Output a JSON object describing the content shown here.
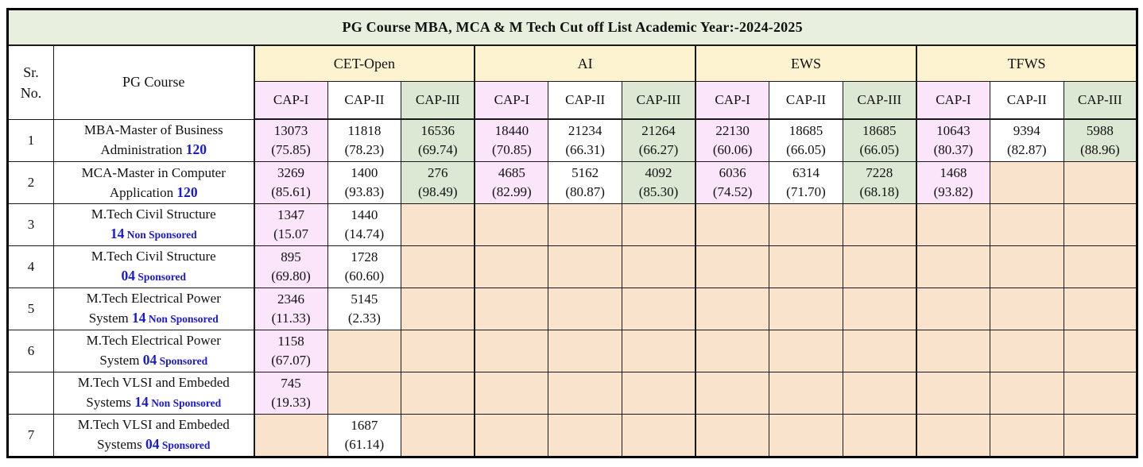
{
  "title": "PG Course MBA, MCA & M Tech Cut off List Academic Year:-2024-2025",
  "header": {
    "sr_no": "Sr.\nNo.",
    "pg_course": "PG Course",
    "groups": [
      "CET-Open",
      "AI",
      "EWS",
      "TFWS"
    ],
    "cap_labels": [
      "CAP-I",
      "CAP-II",
      "CAP-III"
    ]
  },
  "colors": {
    "title_bg": "#e9efdf",
    "group_header_bg": "#fdf3d0",
    "cap1_bg": "#fbe5fb",
    "cap2_bg": "#ffffff",
    "cap3_bg": "#dce8d4",
    "empty_cell_bg": "#fae3cd",
    "accent_blue": "#1a1ad1",
    "border": "#1a1a1a"
  },
  "rows": [
    {
      "sr": "1",
      "course": {
        "line1": "MBA-Master of Business",
        "line2_pre": "Administration",
        "num": "120",
        "tag": ""
      },
      "cells": [
        [
          "13073",
          "(75.85)"
        ],
        [
          "11818",
          "(78.23)"
        ],
        [
          "16536",
          "(69.74)"
        ],
        [
          "18440",
          "(70.85)"
        ],
        [
          "21234",
          "(66.31)"
        ],
        [
          "21264",
          "(66.27)"
        ],
        [
          "22130",
          "(60.06)"
        ],
        [
          "18685",
          "(66.05)"
        ],
        [
          "18685",
          "(66.05)"
        ],
        [
          "10643",
          "(80.37)"
        ],
        [
          "9394",
          "(82.87)"
        ],
        [
          "5988",
          "(88.96)"
        ]
      ]
    },
    {
      "sr": "2",
      "course": {
        "line1": "MCA-Master in Computer",
        "line2_pre": "Application",
        "num": "120",
        "tag": ""
      },
      "cells": [
        [
          "3269",
          "(85.61)"
        ],
        [
          "1400",
          "(93.83)"
        ],
        [
          "276",
          "(98.49)"
        ],
        [
          "4685",
          "(82.99)"
        ],
        [
          "5162",
          "(80.87)"
        ],
        [
          "4092",
          "(85.30)"
        ],
        [
          "6036",
          "(74.52)"
        ],
        [
          "6314",
          "(71.70)"
        ],
        [
          "7228",
          "(68.18)"
        ],
        [
          "1468",
          "(93.82)"
        ],
        null,
        null
      ]
    },
    {
      "sr": "3",
      "course": {
        "line1": "M.Tech Civil Structure",
        "line2_pre": "",
        "num": "14",
        "tag": "Non Sponsored"
      },
      "cells": [
        [
          "1347",
          "(15.07"
        ],
        [
          "1440",
          "(14.74)"
        ],
        null,
        null,
        null,
        null,
        null,
        null,
        null,
        null,
        null,
        null
      ]
    },
    {
      "sr": "4",
      "course": {
        "line1": "M.Tech Civil Structure",
        "line2_pre": "",
        "num": "04",
        "tag": "Sponsored"
      },
      "cells": [
        [
          "895",
          "(69.80)"
        ],
        [
          "1728",
          "(60.60)"
        ],
        null,
        null,
        null,
        null,
        null,
        null,
        null,
        null,
        null,
        null
      ]
    },
    {
      "sr": "5",
      "course": {
        "line1": "M.Tech Electrical Power",
        "line2_pre": "System",
        "num": "14",
        "tag": "Non Sponsored"
      },
      "cells": [
        [
          "2346",
          "(11.33)"
        ],
        [
          "5145",
          "(2.33)"
        ],
        null,
        null,
        null,
        null,
        null,
        null,
        null,
        null,
        null,
        null
      ]
    },
    {
      "sr": "6",
      "course": {
        "line1": "M.Tech Electrical Power",
        "line2_pre": "System",
        "num": "04",
        "tag": "Sponsored"
      },
      "cells": [
        [
          "1158",
          "(67.07)"
        ],
        null,
        null,
        null,
        null,
        null,
        null,
        null,
        null,
        null,
        null,
        null
      ]
    },
    {
      "sr": "",
      "course": {
        "line1": "M.Tech VLSI and Embeded",
        "line2_pre": "Systems",
        "num": "14",
        "tag": "Non Sponsored"
      },
      "cells": [
        [
          "745",
          "(19.33)"
        ],
        null,
        null,
        null,
        null,
        null,
        null,
        null,
        null,
        null,
        null,
        null
      ]
    },
    {
      "sr": "7",
      "course": {
        "line1": "M.Tech VLSI and Embeded",
        "line2_pre": "Systems",
        "num": "04",
        "tag": "Sponsored"
      },
      "cells": [
        null,
        [
          "1687",
          "(61.14)"
        ],
        null,
        null,
        null,
        null,
        null,
        null,
        null,
        null,
        null,
        null
      ]
    }
  ]
}
